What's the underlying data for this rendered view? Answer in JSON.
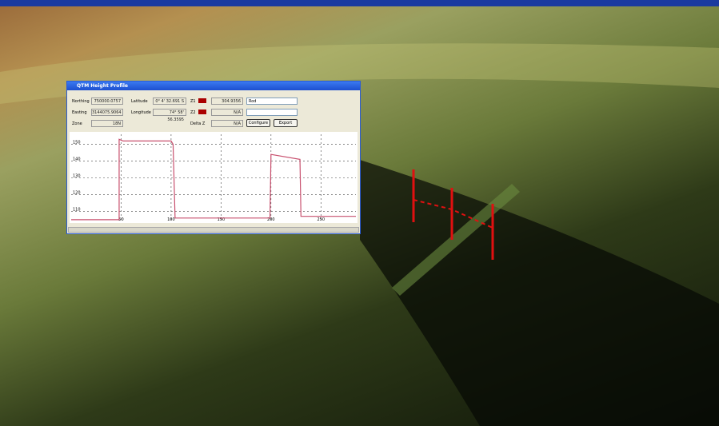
{
  "window": {
    "title": "QTM Height Profile"
  },
  "fields": {
    "northing": {
      "label": "Northing",
      "value": "750000.0757"
    },
    "easting": {
      "label": "Easting",
      "value": "3144075.9064"
    },
    "zone": {
      "label": "Zone",
      "value": "18N"
    },
    "latitude": {
      "label": "Latitude",
      "value": "0° 4' 32.691 S"
    },
    "longitude": {
      "label": "Longitude",
      "value": "74° 58' 56.3595"
    },
    "z1": {
      "label": "Z1",
      "value": "304.9356"
    },
    "z2": {
      "label": "Z2",
      "value": "N/A"
    },
    "delta_z": {
      "label": "Delta Z",
      "value": "N/A"
    },
    "dropdown1": "Rod"
  },
  "buttons": [
    "Configure",
    "Export"
  ],
  "profile": {
    "type": "line",
    "color": "#c8506e",
    "x": [
      0,
      48,
      48,
      52,
      100,
      102,
      104,
      150,
      199,
      200,
      229,
      230,
      285
    ],
    "y": [
      105,
      105,
      153,
      152,
      152,
      150,
      106,
      106,
      106,
      144,
      141,
      107,
      107
    ],
    "xlim": [
      0,
      285
    ],
    "ylim": [
      104,
      156
    ],
    "xticks": [
      50,
      100,
      150,
      200,
      250
    ],
    "yticks": [
      110,
      120,
      130,
      140,
      150
    ]
  }
}
